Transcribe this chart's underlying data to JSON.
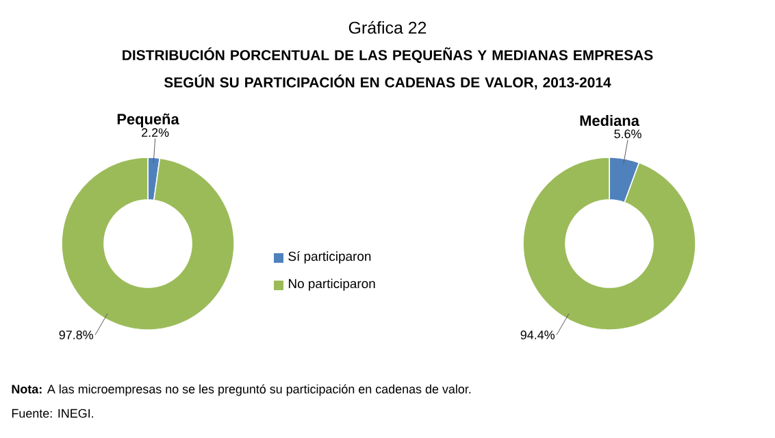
{
  "chart_data": [
    {
      "type": "donut",
      "title": "Gráfica 22",
      "subtitle": "DISTRIBUCIÓN PORCENTUAL DE LAS PEQUEÑAS Y MEDIANAS EMPRESAS SEGÚN SU PARTICIPACIÓN EN CADENAS DE VALOR, 2013-2014",
      "xlabel": "Pequeña",
      "categories": [
        "Sí participaron",
        "No participaron"
      ],
      "values": [
        2.2,
        97.8
      ],
      "colors": [
        "#4f81bd",
        "#9bbb59"
      ],
      "value_labels": [
        "2.2%",
        "97.8%"
      ],
      "legend": "right",
      "annotations": [
        "**Nota:** A las microempresas no se les preguntó su participación en cadenas de valor.",
        "Fuente: INEGI."
      ]
    },
    {
      "type": "donut",
      "xlabel": "Mediana",
      "categories": [
        null,
        null
      ],
      "values": [
        5.6,
        94.4
      ],
      "colors": [
        "#4f81bd",
        "#9bbb59"
      ],
      "value_labels": [
        "5.6%",
        "94.4%"
      ]
    }
  ]
}
